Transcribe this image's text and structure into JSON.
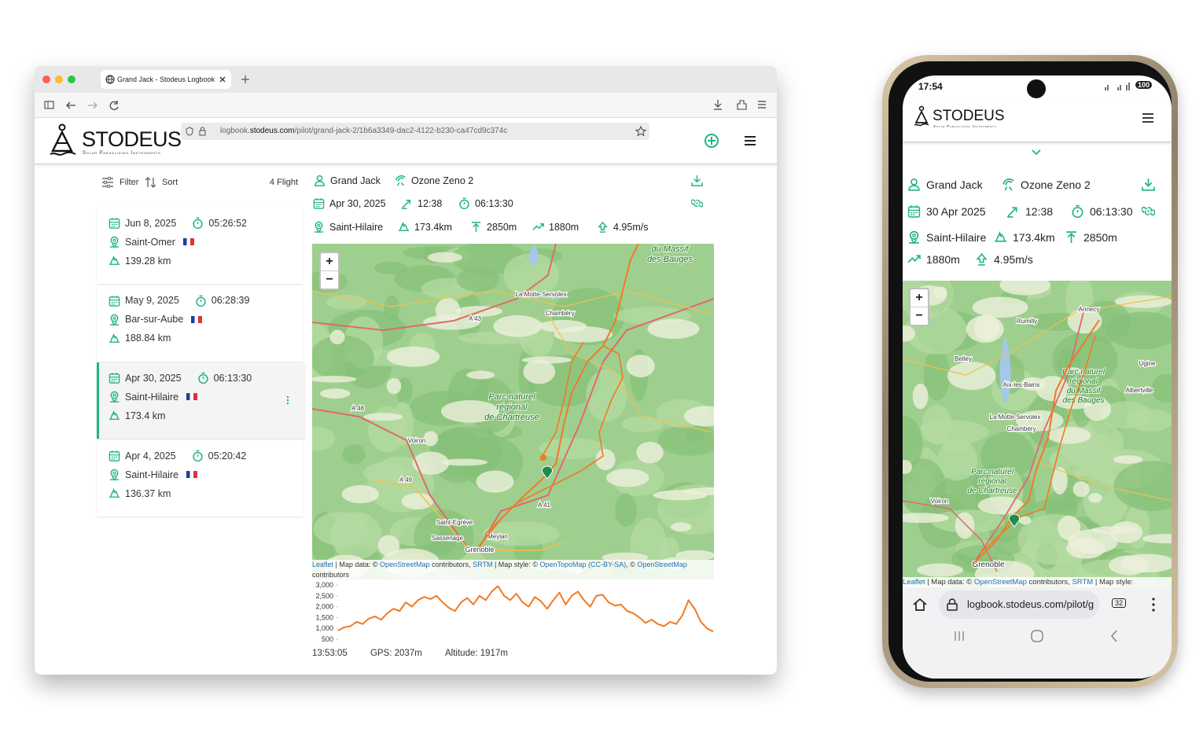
{
  "browser": {
    "tab_title": "Grand Jack - Stodeus Logbook",
    "url_host": "logbook.",
    "url_domain": "stodeus.com",
    "url_path": "/pilot/grand-jack-2/1b6a3349-dac2-4122-b230-ca47cd9c374c"
  },
  "header": {
    "brand": "STODEUS",
    "tagline": "Solar Paragliding Instruments"
  },
  "flight_list": {
    "filter": "Filter",
    "sort": "Sort",
    "count": "4 Flight",
    "flights": [
      {
        "date": "Jun 8, 2025",
        "duration": "05:26:52",
        "site": "Saint-Omer",
        "distance": "139.28 km"
      },
      {
        "date": "May 9, 2025",
        "duration": "06:28:39",
        "site": "Bar-sur-Aube",
        "distance": "188.84 km"
      },
      {
        "date": "Apr 30, 2025",
        "duration": "06:13:30",
        "site": "Saint-Hilaire",
        "distance": "173.4 km"
      },
      {
        "date": "Apr 4, 2025",
        "duration": "05:20:42",
        "site": "Saint-Hilaire",
        "distance": "136.37 km"
      }
    ]
  },
  "flight_detail": {
    "pilot": "Grand Jack",
    "wing": "Ozone Zeno 2",
    "date": "Apr 30, 2025",
    "takeoff": "12:38",
    "duration": "06:13:30",
    "site": "Saint-Hilaire",
    "distance": "173.4km",
    "max_altitude": "2850m",
    "altitude_gain": "1880m",
    "max_climb": "4.95m/s"
  },
  "map": {
    "labels": [
      "La Motte-Servolex",
      "Chambéry",
      "A 43",
      "A 48",
      "Voiron",
      "A 49",
      "A 41",
      "Saint-Egrève",
      "Sassenage",
      "Meylan",
      "Grenoble"
    ],
    "park_label": [
      "Parc naturel",
      "régional",
      "de Chartreuse"
    ],
    "bauges_label": [
      "du Massif",
      "des Bauges"
    ],
    "zoom_in": "+",
    "zoom_out": "−",
    "attribution": {
      "leaflet": "Leaflet",
      "map_data": " | Map data: © ",
      "osm": "OpenStreetMap",
      "contributors": " contributors, ",
      "srtm": "SRTM",
      "map_style": " | Map style: © ",
      "opentopomap": "OpenTopoMap",
      "license": "(CC-BY-SA)",
      "sep": ", © ",
      "osm2": "OpenStreetMap",
      "contributors2": " contributors"
    }
  },
  "chart_data": {
    "type": "line",
    "color": "#f07a24",
    "ylim": [
      500,
      3000
    ],
    "yticks": [
      {
        "value": 3000,
        "label": "3,000"
      },
      {
        "value": 2500,
        "label": "2,500"
      },
      {
        "value": 2000,
        "label": "2,000"
      },
      {
        "value": 1500,
        "label": "1,500"
      },
      {
        "value": 1000,
        "label": "1,000"
      },
      500
    ],
    "values": [
      900,
      1050,
      1100,
      1300,
      1200,
      1450,
      1550,
      1400,
      1700,
      1900,
      1800,
      2200,
      2000,
      2300,
      2450,
      2350,
      2500,
      2200,
      1950,
      1800,
      2200,
      2400,
      2100,
      2500,
      2300,
      2700,
      2950,
      2500,
      2300,
      2600,
      2200,
      2000,
      2450,
      2250,
      1900,
      2300,
      2650,
      2100,
      2500,
      2700,
      2300,
      2000,
      2500,
      2550,
      2200,
      2050,
      2100,
      1800,
      1700,
      1500,
      1250,
      1400,
      1200,
      1100,
      1300,
      1200,
      1600,
      2300,
      1900,
      1300,
      1000,
      850
    ]
  },
  "readout": {
    "time": "13:53:05",
    "gps": "GPS: 2037m",
    "altitude": "Altitude: 1917m"
  },
  "phone": {
    "status_time": "17:54",
    "battery": "100",
    "brand": "STODEUS",
    "tagline": "Solar Paragliding Instruments",
    "detail": {
      "pilot": "Grand Jack",
      "wing": "Ozone Zeno 2",
      "date": "30 Apr 2025",
      "takeoff": "12:38",
      "duration": "06:13:30",
      "site": "Saint-Hilaire",
      "distance": "173.4km",
      "max_altitude": "2850m",
      "altitude_gain": "1880m",
      "max_climb": "4.95m/s"
    },
    "map_labels": [
      "Annecy",
      "Rumilly",
      "Belley",
      "Ugine",
      "Aix-les-Bains",
      "Albertville",
      "La Motte-Servolex",
      "Chambéry",
      "Voiron",
      "Grenoble"
    ],
    "park_label": [
      "Parc naturel",
      "régional",
      "de Chartreuse"
    ],
    "bauges_label": [
      "Parc naturel",
      "régional",
      "du Massif",
      "des Bauges"
    ],
    "zoom_in": "+",
    "zoom_out": "−",
    "attribution": {
      "leaflet": "Leaflet",
      "map_data": " | Map data: © ",
      "osm": "OpenStreetMap",
      "contributors": " contributors, ",
      "srtm": "SRTM",
      "map_style": " | Map style:"
    },
    "url": "logbook.stodeus.com/pilot/g",
    "tab_count": "32"
  }
}
